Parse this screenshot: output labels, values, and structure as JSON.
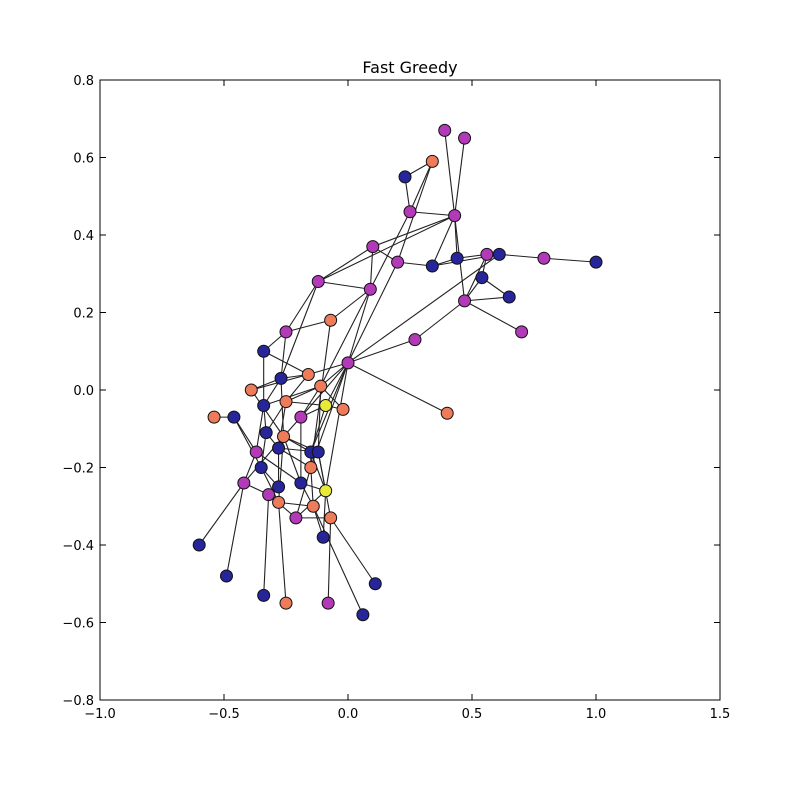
{
  "chart_data": {
    "type": "network",
    "title": "Fast Greedy",
    "xlim": [
      -1.0,
      1.5
    ],
    "ylim": [
      -0.8,
      0.8
    ],
    "xticks": [
      "−1.0",
      "−0.5",
      "0.0",
      "0.5",
      "1.0",
      "1.5"
    ],
    "yticks": [
      "−0.8",
      "−0.6",
      "−0.4",
      "−0.2",
      "0.0",
      "0.2",
      "0.4",
      "0.6",
      "0.8"
    ],
    "grid": false,
    "community_colors": {
      "navy": "#26269a",
      "magenta": "#b23ab8",
      "salmon": "#ee7b5a",
      "yellow": "#e9e939"
    },
    "nodes": [
      {
        "x": 0.39,
        "y": 0.67,
        "c": "magenta"
      },
      {
        "x": 0.47,
        "y": 0.65,
        "c": "magenta"
      },
      {
        "x": 0.34,
        "y": 0.59,
        "c": "salmon"
      },
      {
        "x": 0.23,
        "y": 0.55,
        "c": "navy"
      },
      {
        "x": 0.25,
        "y": 0.46,
        "c": "magenta"
      },
      {
        "x": 0.43,
        "y": 0.45,
        "c": "magenta"
      },
      {
        "x": 0.1,
        "y": 0.37,
        "c": "magenta"
      },
      {
        "x": 0.2,
        "y": 0.33,
        "c": "magenta"
      },
      {
        "x": 0.34,
        "y": 0.32,
        "c": "navy"
      },
      {
        "x": 0.44,
        "y": 0.34,
        "c": "navy"
      },
      {
        "x": 0.56,
        "y": 0.35,
        "c": "magenta"
      },
      {
        "x": 0.61,
        "y": 0.35,
        "c": "navy"
      },
      {
        "x": 0.79,
        "y": 0.34,
        "c": "magenta"
      },
      {
        "x": 1.0,
        "y": 0.33,
        "c": "navy"
      },
      {
        "x": 0.54,
        "y": 0.29,
        "c": "navy"
      },
      {
        "x": 0.47,
        "y": 0.23,
        "c": "magenta"
      },
      {
        "x": 0.65,
        "y": 0.24,
        "c": "navy"
      },
      {
        "x": 0.7,
        "y": 0.15,
        "c": "magenta"
      },
      {
        "x": -0.12,
        "y": 0.28,
        "c": "magenta"
      },
      {
        "x": 0.09,
        "y": 0.26,
        "c": "magenta"
      },
      {
        "x": -0.07,
        "y": 0.18,
        "c": "salmon"
      },
      {
        "x": -0.25,
        "y": 0.15,
        "c": "magenta"
      },
      {
        "x": 0.27,
        "y": 0.13,
        "c": "magenta"
      },
      {
        "x": -0.34,
        "y": 0.1,
        "c": "navy"
      },
      {
        "x": 0.0,
        "y": 0.07,
        "c": "magenta"
      },
      {
        "x": -0.16,
        "y": 0.04,
        "c": "salmon"
      },
      {
        "x": -0.27,
        "y": 0.03,
        "c": "navy"
      },
      {
        "x": -0.11,
        "y": 0.01,
        "c": "salmon"
      },
      {
        "x": -0.39,
        "y": 0.0,
        "c": "salmon"
      },
      {
        "x": 0.4,
        "y": -0.06,
        "c": "salmon"
      },
      {
        "x": -0.34,
        "y": -0.04,
        "c": "navy"
      },
      {
        "x": -0.25,
        "y": -0.03,
        "c": "salmon"
      },
      {
        "x": -0.09,
        "y": -0.04,
        "c": "yellow"
      },
      {
        "x": -0.02,
        "y": -0.05,
        "c": "salmon"
      },
      {
        "x": -0.54,
        "y": -0.07,
        "c": "salmon"
      },
      {
        "x": -0.46,
        "y": -0.07,
        "c": "navy"
      },
      {
        "x": -0.19,
        "y": -0.07,
        "c": "magenta"
      },
      {
        "x": -0.33,
        "y": -0.11,
        "c": "navy"
      },
      {
        "x": -0.26,
        "y": -0.12,
        "c": "salmon"
      },
      {
        "x": -0.28,
        "y": -0.15,
        "c": "navy"
      },
      {
        "x": -0.37,
        "y": -0.16,
        "c": "magenta"
      },
      {
        "x": -0.15,
        "y": -0.16,
        "c": "navy"
      },
      {
        "x": -0.12,
        "y": -0.16,
        "c": "navy"
      },
      {
        "x": -0.35,
        "y": -0.2,
        "c": "navy"
      },
      {
        "x": -0.15,
        "y": -0.2,
        "c": "salmon"
      },
      {
        "x": -0.42,
        "y": -0.24,
        "c": "magenta"
      },
      {
        "x": -0.28,
        "y": -0.25,
        "c": "navy"
      },
      {
        "x": -0.19,
        "y": -0.24,
        "c": "navy"
      },
      {
        "x": -0.09,
        "y": -0.26,
        "c": "yellow"
      },
      {
        "x": -0.32,
        "y": -0.27,
        "c": "magenta"
      },
      {
        "x": -0.28,
        "y": -0.29,
        "c": "salmon"
      },
      {
        "x": -0.14,
        "y": -0.3,
        "c": "salmon"
      },
      {
        "x": -0.21,
        "y": -0.33,
        "c": "magenta"
      },
      {
        "x": -0.07,
        "y": -0.33,
        "c": "salmon"
      },
      {
        "x": -0.1,
        "y": -0.38,
        "c": "navy"
      },
      {
        "x": -0.6,
        "y": -0.4,
        "c": "navy"
      },
      {
        "x": -0.49,
        "y": -0.48,
        "c": "navy"
      },
      {
        "x": 0.11,
        "y": -0.5,
        "c": "navy"
      },
      {
        "x": -0.34,
        "y": -0.53,
        "c": "navy"
      },
      {
        "x": -0.25,
        "y": -0.55,
        "c": "salmon"
      },
      {
        "x": -0.08,
        "y": -0.55,
        "c": "magenta"
      },
      {
        "x": 0.06,
        "y": -0.58,
        "c": "navy"
      }
    ],
    "edges": [
      [
        0,
        5
      ],
      [
        1,
        5
      ],
      [
        2,
        3
      ],
      [
        2,
        4
      ],
      [
        2,
        7
      ],
      [
        4,
        5
      ],
      [
        5,
        9
      ],
      [
        5,
        8
      ],
      [
        5,
        15
      ],
      [
        5,
        6
      ],
      [
        5,
        18
      ],
      [
        3,
        4
      ],
      [
        4,
        19
      ],
      [
        6,
        7
      ],
      [
        6,
        18
      ],
      [
        7,
        8
      ],
      [
        8,
        9
      ],
      [
        8,
        11
      ],
      [
        9,
        10
      ],
      [
        10,
        11
      ],
      [
        10,
        14
      ],
      [
        11,
        12
      ],
      [
        12,
        13
      ],
      [
        14,
        15
      ],
      [
        14,
        16
      ],
      [
        15,
        16
      ],
      [
        15,
        17
      ],
      [
        10,
        15
      ],
      [
        15,
        22
      ],
      [
        22,
        24
      ],
      [
        7,
        24
      ],
      [
        11,
        24
      ],
      [
        6,
        19
      ],
      [
        18,
        19
      ],
      [
        19,
        20
      ],
      [
        18,
        21
      ],
      [
        18,
        26
      ],
      [
        20,
        21
      ],
      [
        21,
        23
      ],
      [
        19,
        24
      ],
      [
        19,
        27
      ],
      [
        23,
        25
      ],
      [
        23,
        30
      ],
      [
        24,
        25
      ],
      [
        24,
        27
      ],
      [
        24,
        36
      ],
      [
        24,
        32
      ],
      [
        24,
        44
      ],
      [
        25,
        26
      ],
      [
        25,
        31
      ],
      [
        26,
        28
      ],
      [
        26,
        30
      ],
      [
        26,
        38
      ],
      [
        27,
        31
      ],
      [
        28,
        25
      ],
      [
        29,
        24
      ],
      [
        31,
        32
      ],
      [
        31,
        37
      ],
      [
        32,
        33
      ],
      [
        32,
        36
      ],
      [
        30,
        37
      ],
      [
        30,
        40
      ],
      [
        34,
        35
      ],
      [
        35,
        40
      ],
      [
        35,
        43
      ],
      [
        36,
        38
      ],
      [
        37,
        39
      ],
      [
        37,
        43
      ],
      [
        38,
        39
      ],
      [
        38,
        41
      ],
      [
        38,
        42
      ],
      [
        38,
        47
      ],
      [
        38,
        45
      ],
      [
        38,
        50
      ],
      [
        39,
        42
      ],
      [
        39,
        44
      ],
      [
        39,
        46
      ],
      [
        40,
        45
      ],
      [
        40,
        47
      ],
      [
        41,
        48
      ],
      [
        41,
        44
      ],
      [
        42,
        48
      ],
      [
        42,
        53
      ],
      [
        43,
        46
      ],
      [
        43,
        50
      ],
      [
        44,
        52
      ],
      [
        44,
        51
      ],
      [
        45,
        49
      ],
      [
        46,
        49
      ],
      [
        47,
        48
      ],
      [
        47,
        51
      ],
      [
        48,
        52
      ],
      [
        48,
        54
      ],
      [
        49,
        52
      ],
      [
        50,
        51
      ],
      [
        51,
        54
      ],
      [
        51,
        61
      ],
      [
        52,
        53
      ],
      [
        36,
        27
      ],
      [
        33,
        27
      ],
      [
        42,
        27
      ],
      [
        45,
        55
      ],
      [
        45,
        56
      ],
      [
        49,
        58
      ],
      [
        50,
        59
      ],
      [
        53,
        57
      ],
      [
        53,
        60
      ],
      [
        24,
        48
      ],
      [
        24,
        41
      ],
      [
        36,
        47
      ],
      [
        41,
        32
      ],
      [
        27,
        30
      ],
      [
        20,
        44
      ],
      [
        21,
        26
      ],
      [
        28,
        38
      ],
      [
        31,
        39
      ]
    ]
  }
}
